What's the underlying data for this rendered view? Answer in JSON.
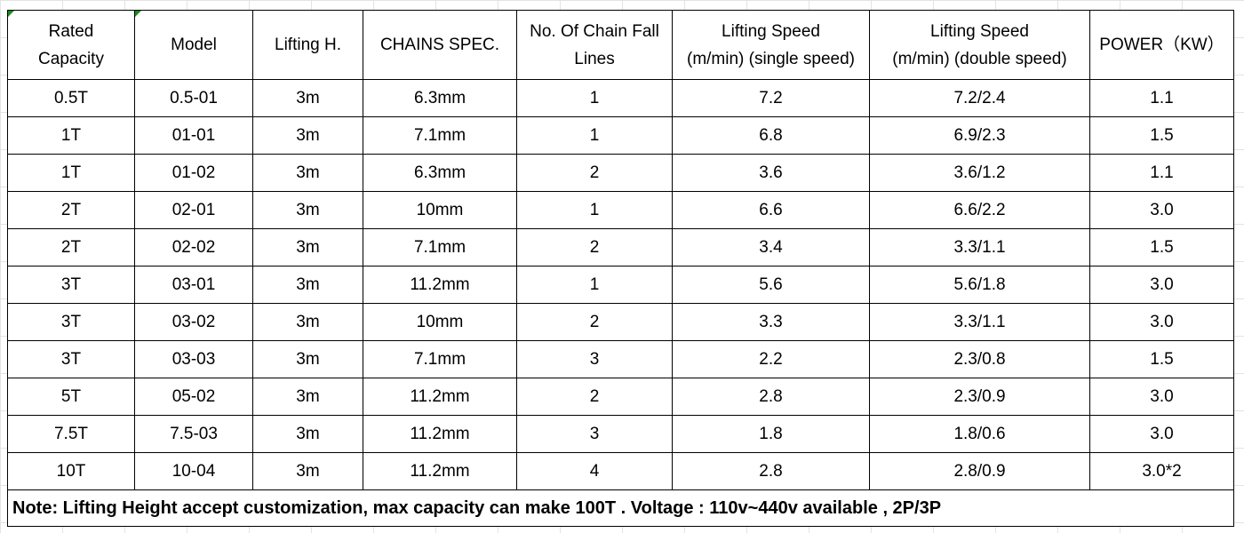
{
  "table": {
    "headers": [
      [
        "Rated",
        "Capacity"
      ],
      [
        "Model"
      ],
      [
        "Lifting H."
      ],
      [
        "CHAINS SPEC."
      ],
      [
        "No. Of Chain Fall",
        "Lines"
      ],
      [
        "Lifting Speed",
        "(m/min) (single speed)"
      ],
      [
        "Lifting Speed",
        "(m/min) (double speed)"
      ],
      [
        "POWER（KW）"
      ]
    ],
    "rows": [
      [
        "0.5T",
        "0.5-01",
        "3m",
        "6.3mm",
        "1",
        "7.2",
        "7.2/2.4",
        "1.1"
      ],
      [
        "1T",
        "01-01",
        "3m",
        "7.1mm",
        "1",
        "6.8",
        "6.9/2.3",
        "1.5"
      ],
      [
        "1T",
        "01-02",
        "3m",
        "6.3mm",
        "2",
        "3.6",
        "3.6/1.2",
        "1.1"
      ],
      [
        "2T",
        "02-01",
        "3m",
        "10mm",
        "1",
        "6.6",
        "6.6/2.2",
        "3.0"
      ],
      [
        "2T",
        "02-02",
        "3m",
        "7.1mm",
        "2",
        "3.4",
        "3.3/1.1",
        "1.5"
      ],
      [
        "3T",
        "03-01",
        "3m",
        "11.2mm",
        "1",
        "5.6",
        "5.6/1.8",
        "3.0"
      ],
      [
        "3T",
        "03-02",
        "3m",
        "10mm",
        "2",
        "3.3",
        "3.3/1.1",
        "3.0"
      ],
      [
        "3T",
        "03-03",
        "3m",
        "7.1mm",
        "3",
        "2.2",
        "2.3/0.8",
        "1.5"
      ],
      [
        "5T",
        "05-02",
        "3m",
        "11.2mm",
        "2",
        "2.8",
        "2.3/0.9",
        "3.0"
      ],
      [
        "7.5T",
        "7.5-03",
        "3m",
        "11.2mm",
        "3",
        "1.8",
        "1.8/0.6",
        "3.0"
      ],
      [
        "10T",
        "10-04",
        "3m",
        "11.2mm",
        "4",
        "2.8",
        "2.8/0.9",
        "3.0*2"
      ]
    ],
    "note": "Note: Lifting Height accept customization, max capacity can make 100T . Voltage : 110v~440v available , 2P/3P"
  },
  "colors": {
    "border": "#000000",
    "gridline": "#e3e3e3",
    "corner_marker": "#1a8c1a"
  }
}
